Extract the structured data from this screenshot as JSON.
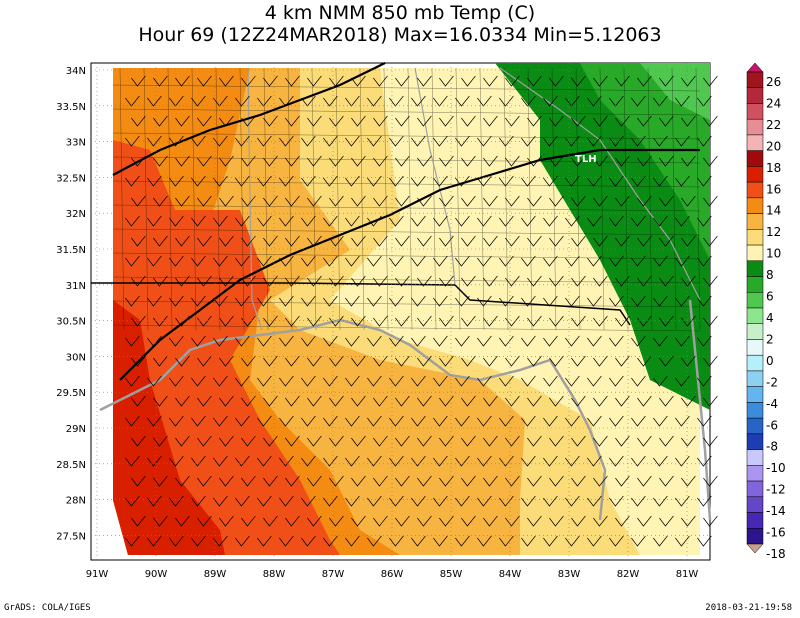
{
  "title": {
    "line1": "4 km NMM 850 mb Temp (C)",
    "line2": "Hour 69 (12Z24MAR2018) Max=16.0334 Min=5.12063"
  },
  "axes": {
    "lat_labels": [
      "34N",
      "33.5N",
      "33N",
      "32.5N",
      "32N",
      "31.5N",
      "31N",
      "30.5N",
      "30N",
      "29.5N",
      "29N",
      "28.5N",
      "28N",
      "27.5N"
    ],
    "lon_labels": [
      "91W",
      "90W",
      "89W",
      "88W",
      "87W",
      "86W",
      "85W",
      "84W",
      "83W",
      "82W",
      "81W"
    ]
  },
  "colorbar": {
    "labels": [
      "26",
      "24",
      "22",
      "20",
      "18",
      "16",
      "14",
      "12",
      "10",
      "8",
      "6",
      "4",
      "2",
      "0",
      "-2",
      "-4",
      "-6",
      "-8",
      "-10",
      "-12",
      "-14",
      "-16",
      "-18"
    ],
    "colors": [
      "#a0141e",
      "#b4283c",
      "#d05060",
      "#e88c96",
      "#f4b4b4",
      "#a00a0a",
      "#d82000",
      "#f05018",
      "#f48c14",
      "#f8b440",
      "#fbdc78",
      "#fff4b4",
      "#0a8c14",
      "#28aa28",
      "#50c850",
      "#8ce68c",
      "#c8f0c8",
      "#e6f8f8",
      "#b4f0fa",
      "#8cd2f0",
      "#64b4f0",
      "#3c8cdc",
      "#2864c8",
      "#1e3cb4",
      "#c8c8fa",
      "#aa96f0",
      "#8264dc",
      "#6446c8",
      "#4628b4",
      "#2c148c"
    ],
    "tip_top_color": "#c8146e",
    "tip_bottom_color": "#c8a08c"
  },
  "field_colors": {
    "red": "#d82000",
    "orange_red": "#f05018",
    "orange": "#f48c14",
    "light_orange": "#f8b440",
    "yellow": "#fbdc78",
    "pale_yellow": "#fff4b4",
    "dark_green": "#0a8c14",
    "green": "#28aa28",
    "light_green": "#50c850",
    "lighter_green": "#8ce68c",
    "land_outline": "#000000",
    "water_outline": "#a0a0a0"
  },
  "map_annotation": "TLH",
  "footer": {
    "left": "GrADS: COLA/IGES",
    "right": "2018-03-21-19:58"
  }
}
